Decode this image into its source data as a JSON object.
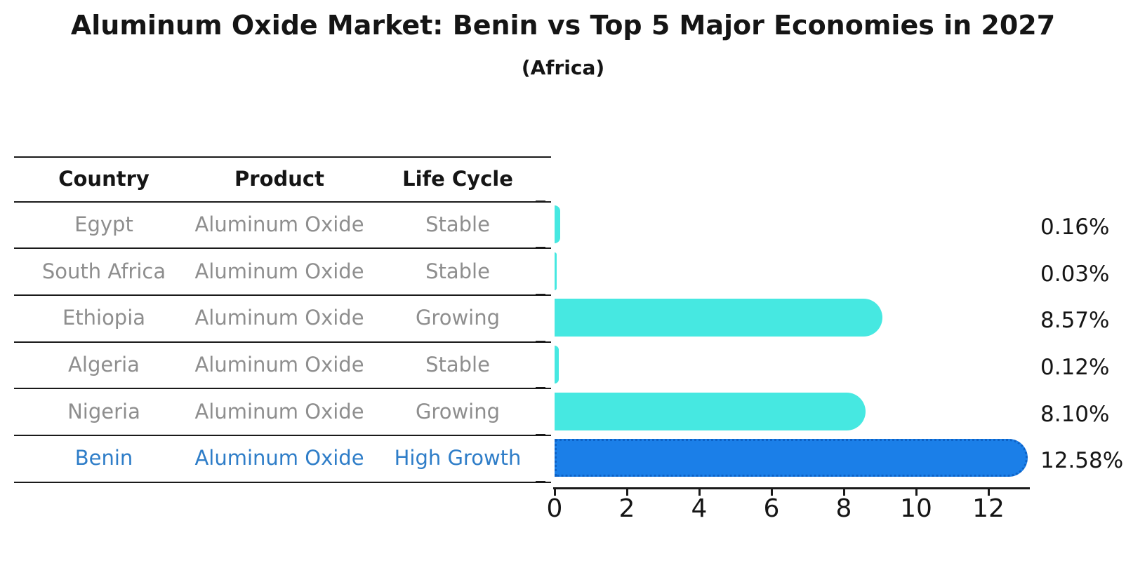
{
  "title": "Aluminum Oxide Market: Benin vs Top 5 Major Economies in 2027",
  "subtitle": "(Africa)",
  "table": {
    "columns": [
      "Country",
      "Product",
      "Life Cycle"
    ],
    "rows": [
      {
        "country": "Egypt",
        "product": "Aluminum Oxide",
        "life_cycle": "Stable",
        "highlight": false
      },
      {
        "country": "South Africa",
        "product": "Aluminum Oxide",
        "life_cycle": "Stable",
        "highlight": false
      },
      {
        "country": "Ethiopia",
        "product": "Aluminum Oxide",
        "life_cycle": "Growing",
        "highlight": false
      },
      {
        "country": "Algeria",
        "product": "Aluminum Oxide",
        "life_cycle": "Stable",
        "highlight": false
      },
      {
        "country": "Nigeria",
        "product": "Aluminum Oxide",
        "life_cycle": "Growing",
        "highlight": false
      },
      {
        "country": "Benin",
        "product": "Aluminum Oxide",
        "life_cycle": "High Growth",
        "highlight": true
      }
    ]
  },
  "chart_data": {
    "type": "bar",
    "orientation": "horizontal",
    "title": "Aluminum Oxide Market: Benin vs Top 5 Major Economies in 2027",
    "subtitle": "(Africa)",
    "categories": [
      "Egypt",
      "South Africa",
      "Ethiopia",
      "Algeria",
      "Nigeria",
      "Benin"
    ],
    "values": [
      0.16,
      0.03,
      8.57,
      0.12,
      8.1,
      12.58
    ],
    "value_labels": [
      "0.16%",
      "0.03%",
      "8.57%",
      "0.12%",
      "8.10%",
      "12.58%"
    ],
    "x_ticks": [
      0,
      2,
      4,
      6,
      8,
      10,
      12
    ],
    "xlim": [
      0,
      13.2
    ],
    "grid": false,
    "legend": "none",
    "highlight_index": 5,
    "bar_color": "#46e8e1",
    "highlight_bar_color": "#1b7fe8",
    "highlight_border_color": "#0d62c6",
    "highlight_text_color": "#2e7dc8",
    "row_text_color": "#8e8e8e",
    "axis_color": "#1a1a1a"
  }
}
